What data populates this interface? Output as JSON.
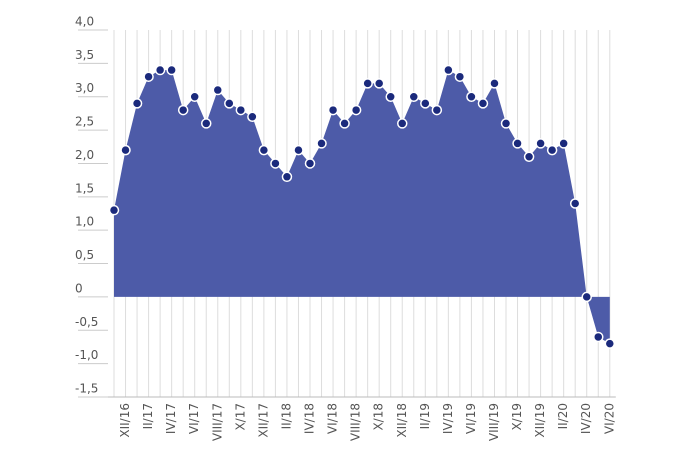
{
  "chart_data": {
    "type": "area",
    "categories": [
      null,
      "XII/16",
      null,
      "II/17",
      null,
      "IV/17",
      null,
      "VI/17",
      null,
      "VIII/17",
      null,
      "X/17",
      null,
      "XII/17",
      null,
      "II/18",
      null,
      "IV/18",
      null,
      "VI/18",
      null,
      "VIII/18",
      null,
      "X/18",
      null,
      "XII/18",
      null,
      "II/19",
      null,
      "IV/19",
      null,
      "VI/19",
      null,
      "VIII/19",
      null,
      "X/19",
      null,
      "XII/19",
      null,
      "II/20",
      null,
      "IV/20",
      null,
      "VI/20"
    ],
    "values": [
      1.3,
      2.2,
      2.9,
      3.3,
      3.4,
      3.4,
      2.8,
      3.0,
      2.6,
      3.1,
      2.9,
      2.8,
      2.7,
      2.2,
      2.0,
      1.8,
      2.2,
      2.0,
      2.3,
      2.8,
      2.6,
      2.8,
      3.2,
      3.2,
      3.0,
      2.6,
      3.0,
      2.9,
      2.8,
      3.4,
      3.3,
      3.0,
      2.9,
      3.2,
      2.6,
      2.3,
      2.1,
      2.3,
      2.2,
      2.3,
      1.4,
      0.0,
      -0.6,
      -0.7
    ],
    "color": "#4d5ba8",
    "marker_color": "#1b2a7c",
    "ylim": [
      -1.5,
      4
    ],
    "yticks": [
      {
        "value": -1.5,
        "label": "-1,5"
      },
      {
        "value": -1,
        "label": "-1,0"
      },
      {
        "value": -0.5,
        "label": "-0,5"
      },
      0,
      {
        "value": 0.5,
        "label": "0,5"
      },
      {
        "value": 1,
        "label": "1,0"
      },
      {
        "value": 1.5,
        "label": "1,5"
      },
      {
        "value": 2,
        "label": "2,0"
      },
      {
        "value": 2.5,
        "label": "2,5"
      },
      {
        "value": 3,
        "label": "3,0"
      },
      {
        "value": 3.5,
        "label": "3,5"
      },
      {
        "value": 4,
        "label": "4,0"
      }
    ],
    "grid": true
  }
}
